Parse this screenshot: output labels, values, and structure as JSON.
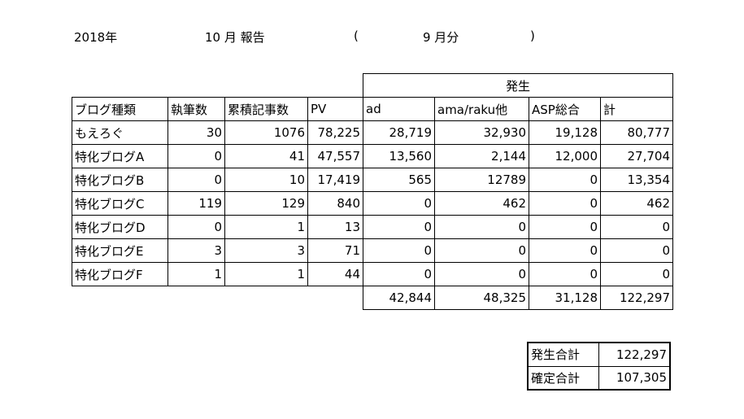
{
  "header": {
    "year": "2018年",
    "report": "10 月 報告",
    "paren_open": "(",
    "month": "9 月分",
    "paren_close": ")"
  },
  "table": {
    "group_header": "発生",
    "columns": [
      "ブログ種類",
      "執筆数",
      "累積記事数",
      "PV",
      "ad",
      "ama/raku他",
      "ASP総合",
      "計"
    ],
    "rows": [
      [
        "もえろぐ",
        "30",
        "1076",
        "78,225",
        "28,719",
        "32,930",
        "19,128",
        "80,777"
      ],
      [
        "特化ブログA",
        "0",
        "41",
        "47,557",
        "13,560",
        "2,144",
        "12,000",
        "27,704"
      ],
      [
        "特化ブログB",
        "0",
        "10",
        "17,419",
        "565",
        "12789",
        "0",
        "13,354"
      ],
      [
        "特化ブログC",
        "119",
        "129",
        "840",
        "0",
        "462",
        "0",
        "462"
      ],
      [
        "特化ブログD",
        "0",
        "1",
        "13",
        "0",
        "0",
        "0",
        "0"
      ],
      [
        "特化ブログE",
        "3",
        "3",
        "71",
        "0",
        "0",
        "0",
        "0"
      ],
      [
        "特化ブログF",
        "1",
        "1",
        "44",
        "0",
        "0",
        "0",
        "0"
      ]
    ],
    "totals": [
      "42,844",
      "48,325",
      "31,128",
      "122,297"
    ]
  },
  "summary": [
    {
      "label": "発生合計",
      "value": "122,297"
    },
    {
      "label": "確定合計",
      "value": "107,305"
    }
  ]
}
